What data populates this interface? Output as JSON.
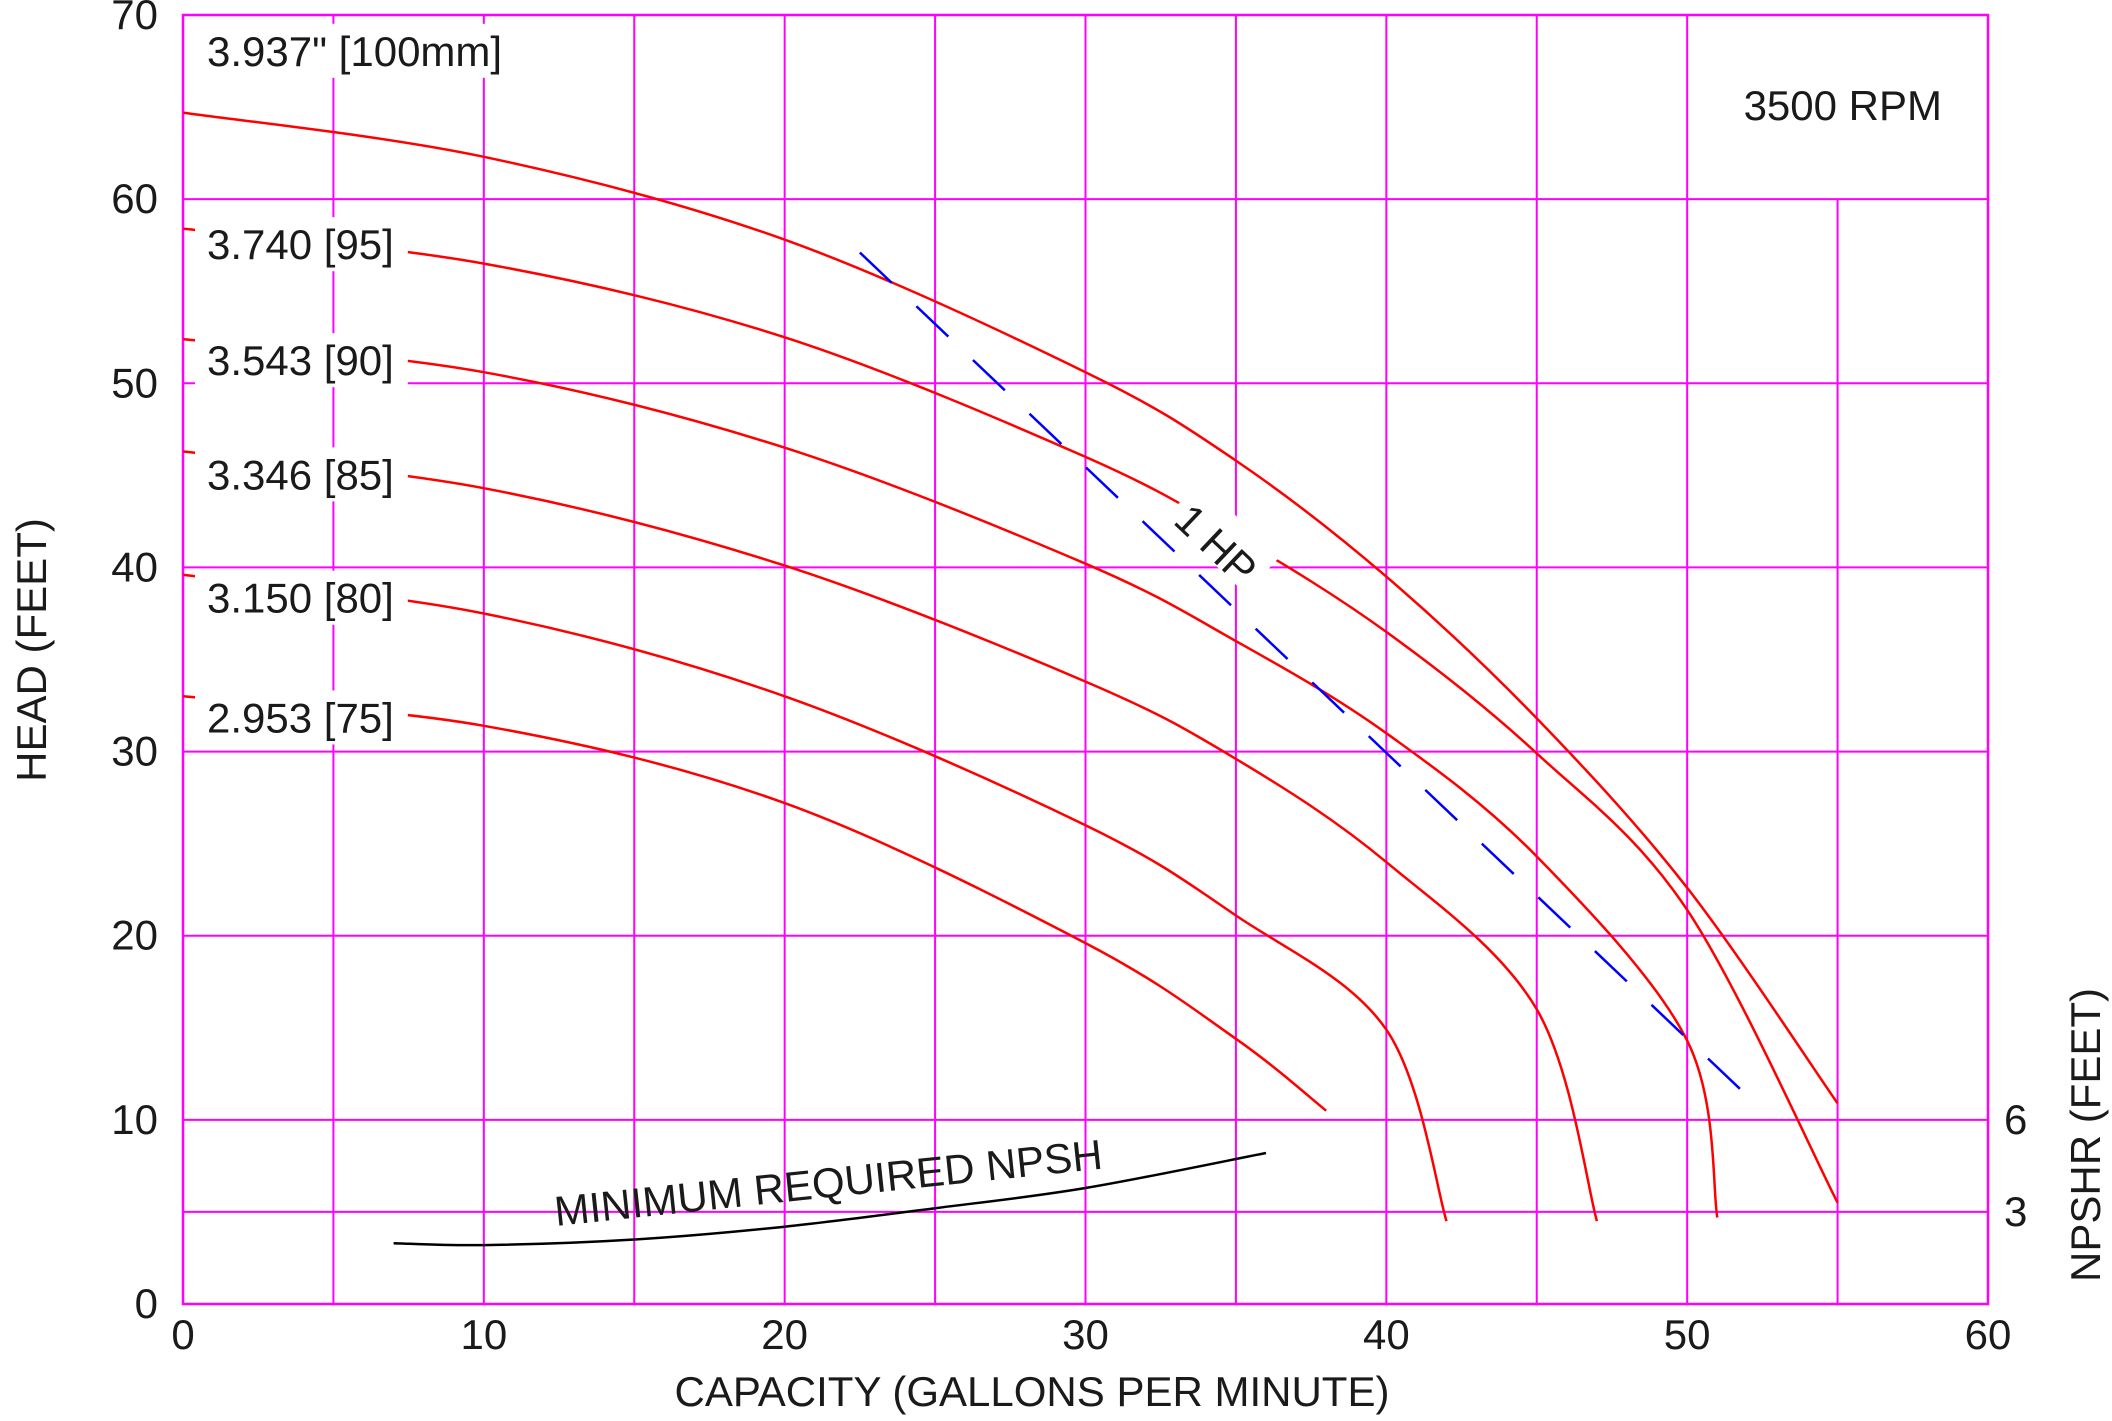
{
  "chart_data": {
    "type": "line",
    "title": "",
    "xlabel": "CAPACITY (GALLONS PER MINUTE)",
    "ylabel": "HEAD (FEET)",
    "y2label": "NPSHR (FEET)",
    "speed_label": "3500 RPM",
    "xlim": [
      0,
      60
    ],
    "ylim": [
      0,
      70
    ],
    "xticks": [
      "0",
      "10",
      "20",
      "30",
      "40",
      "50",
      "60"
    ],
    "yticks": [
      "0",
      "10",
      "20",
      "30",
      "40",
      "50",
      "60",
      "70"
    ],
    "y2ticks": [
      {
        "label": "6",
        "head": 10
      },
      {
        "label": "3",
        "head": 5
      }
    ],
    "grid": true,
    "colors": {
      "grid": "#ff00ff",
      "curve": "#ff0000",
      "power": "#0000ff",
      "npsh": "#000000"
    },
    "series": [
      {
        "name": "3.937\" [100mm]",
        "points": [
          [
            0,
            64.7
          ],
          [
            10,
            62.3
          ],
          [
            20,
            57.8
          ],
          [
            30,
            50.6
          ],
          [
            35,
            45.8
          ],
          [
            40,
            39.5
          ],
          [
            45,
            31.8
          ],
          [
            50,
            22.6
          ],
          [
            55,
            10.9
          ]
        ]
      },
      {
        "name": "3.740 [95]",
        "points": [
          [
            0,
            58.4
          ],
          [
            10,
            56.5
          ],
          [
            20,
            52.5
          ],
          [
            30,
            46.0
          ],
          [
            35,
            41.7
          ],
          [
            40,
            36.5
          ],
          [
            45,
            29.9
          ],
          [
            50,
            21.4
          ],
          [
            55,
            5.5
          ]
        ]
      },
      {
        "name": "3.543 [90]",
        "points": [
          [
            0,
            52.4
          ],
          [
            10,
            50.6
          ],
          [
            20,
            46.5
          ],
          [
            30,
            40.2
          ],
          [
            35,
            36.0
          ],
          [
            40,
            31.0
          ],
          [
            45,
            24.3
          ],
          [
            50,
            14.3
          ],
          [
            51,
            4.7
          ]
        ]
      },
      {
        "name": "3.346 [85]",
        "points": [
          [
            0,
            46.3
          ],
          [
            10,
            44.3
          ],
          [
            20,
            40.1
          ],
          [
            30,
            33.8
          ],
          [
            35,
            29.6
          ],
          [
            40,
            24.0
          ],
          [
            45,
            16.0
          ],
          [
            47,
            4.5
          ]
        ]
      },
      {
        "name": "3.150 [80]",
        "points": [
          [
            0,
            39.6
          ],
          [
            10,
            37.5
          ],
          [
            20,
            33.0
          ],
          [
            30,
            26.0
          ],
          [
            35,
            21.1
          ],
          [
            40,
            14.9
          ],
          [
            42,
            4.5
          ]
        ]
      },
      {
        "name": "2.953 [75]",
        "points": [
          [
            0,
            33.0
          ],
          [
            10,
            31.4
          ],
          [
            20,
            27.2
          ],
          [
            30,
            19.6
          ],
          [
            35,
            14.4
          ],
          [
            38,
            10.5
          ]
        ]
      }
    ],
    "power_line": {
      "label": "1 HP",
      "points": [
        [
          22.5,
          57.1
        ],
        [
          52,
          11.3
        ]
      ]
    },
    "npsh_curve": {
      "label": "MINIMUM REQUIRED NPSH",
      "points": [
        [
          7,
          3.3
        ],
        [
          10,
          3.2
        ],
        [
          15,
          3.5
        ],
        [
          20,
          4.2
        ],
        [
          25,
          5.2
        ],
        [
          30,
          6.3
        ],
        [
          36,
          8.2
        ]
      ]
    }
  }
}
